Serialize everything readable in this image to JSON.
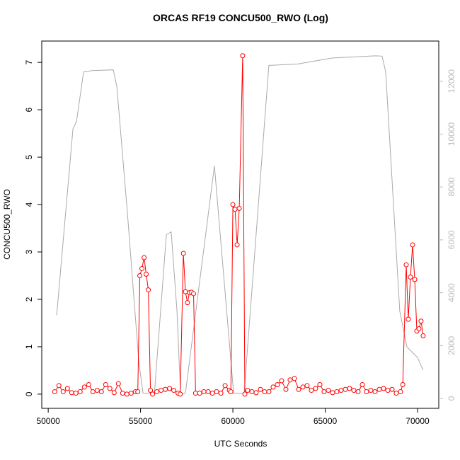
{
  "chart_data": {
    "type": "line",
    "title": "ORCAS RF19 CONCU500_RWO (Log)",
    "x_label": "UTC Seconds",
    "y_label": "CONCU500_RWO",
    "xlim": [
      49650,
      71150
    ],
    "ylim": [
      -0.3,
      7.45
    ],
    "y2lim": [
      -373,
      13520
    ],
    "xticks": [
      50000,
      55000,
      60000,
      65000,
      70000
    ],
    "yticks": [
      0,
      1,
      2,
      3,
      4,
      5,
      6,
      7
    ],
    "y2ticks": [
      0,
      2000,
      4000,
      6000,
      8000,
      10000,
      12000
    ],
    "y2_tick_color": "#bbbbbb",
    "series": [
      {
        "color": "#aaaaaa",
        "axis": "y2",
        "markers": false,
        "x": [
          50460,
          51340,
          51530,
          51915,
          52375,
          53525,
          53716,
          54290,
          54904,
          55134,
          55750,
          56400,
          56660,
          56975,
          57165,
          57430,
          59000,
          60040,
          60610,
          61950,
          63490,
          65400,
          67700,
          68080,
          68275,
          69040,
          69425,
          70000,
          70300
        ],
        "values": [
          3150,
          10200,
          10480,
          12350,
          12400,
          12430,
          11800,
          7000,
          1400,
          200,
          200,
          6200,
          6300,
          3300,
          200,
          200,
          8800,
          200,
          200,
          12600,
          12650,
          12880,
          12960,
          12950,
          12350,
          3300,
          1950,
          1550,
          1070
        ]
      },
      {
        "color": "#ff0000",
        "axis": "y",
        "markers": true,
        "x": [
          50350,
          50580,
          50810,
          51040,
          51270,
          51500,
          51730,
          51960,
          52190,
          52420,
          52650,
          52880,
          53110,
          53340,
          53570,
          53800,
          54030,
          54260,
          54490,
          54720,
          54850,
          54960,
          55075,
          55190,
          55305,
          55420,
          55535,
          55650,
          55880,
          56110,
          56340,
          56570,
          56800,
          57030,
          57150,
          57320,
          57430,
          57540,
          57650,
          57760,
          57870,
          57980,
          58200,
          58430,
          58660,
          58890,
          59120,
          59350,
          59580,
          59810,
          59890,
          60000,
          60115,
          60230,
          60345,
          60530,
          60650,
          60800,
          61030,
          61260,
          61490,
          61720,
          61950,
          62180,
          62410,
          62640,
          62870,
          63100,
          63330,
          63560,
          63790,
          64020,
          64250,
          64480,
          64710,
          64940,
          65170,
          65400,
          65630,
          65860,
          66090,
          66320,
          66550,
          66780,
          67010,
          67240,
          67470,
          67700,
          67930,
          68160,
          68390,
          68620,
          68850,
          69080,
          69200,
          69387,
          69500,
          69617,
          69732,
          69847,
          69962,
          70077,
          70190,
          70306
        ],
        "values": [
          0.05,
          0.18,
          0.05,
          0.12,
          0.03,
          0.02,
          0.05,
          0.15,
          0.2,
          0.05,
          0.08,
          0.05,
          0.2,
          0.12,
          0.03,
          0.22,
          0.02,
          0.0,
          0.02,
          0.05,
          0.05,
          2.5,
          2.65,
          2.88,
          2.53,
          2.2,
          0.08,
          0.0,
          0.05,
          0.08,
          0.1,
          0.12,
          0.08,
          0.02,
          0.0,
          2.97,
          2.16,
          1.93,
          2.14,
          2.15,
          2.12,
          0.02,
          0.02,
          0.05,
          0.05,
          0.02,
          0.05,
          0.02,
          0.18,
          0.08,
          0.05,
          4.0,
          3.9,
          3.15,
          3.92,
          7.14,
          0.0,
          0.08,
          0.05,
          0.03,
          0.1,
          0.05,
          0.05,
          0.15,
          0.2,
          0.28,
          0.1,
          0.3,
          0.33,
          0.1,
          0.15,
          0.18,
          0.08,
          0.12,
          0.2,
          0.05,
          0.08,
          0.03,
          0.05,
          0.08,
          0.1,
          0.12,
          0.08,
          0.05,
          0.2,
          0.05,
          0.08,
          0.05,
          0.1,
          0.12,
          0.08,
          0.1,
          0.02,
          0.05,
          0.2,
          2.73,
          1.58,
          2.47,
          3.15,
          2.42,
          1.33,
          1.38,
          1.54,
          1.23
        ]
      }
    ]
  }
}
